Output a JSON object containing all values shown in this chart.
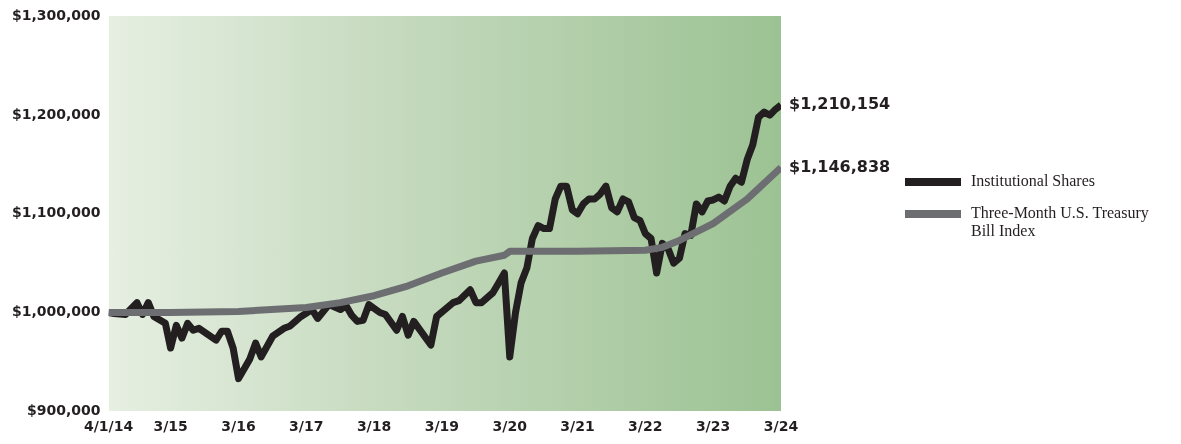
{
  "chart_data": {
    "type": "line",
    "xlim": [
      "2014-04-01",
      "2024-03-01"
    ],
    "xticks": [
      {
        "value": "2014-04-01",
        "label": "4/1/14"
      },
      {
        "value": "2015-03-01",
        "label": "3/15"
      },
      {
        "value": "2016-03-01",
        "label": "3/16"
      },
      {
        "value": "2017-03-01",
        "label": "3/17"
      },
      {
        "value": "2018-03-01",
        "label": "3/18"
      },
      {
        "value": "2019-03-01",
        "label": "3/19"
      },
      {
        "value": "2020-03-01",
        "label": "3/20"
      },
      {
        "value": "2021-03-01",
        "label": "3/21"
      },
      {
        "value": "2022-03-01",
        "label": "3/22"
      },
      {
        "value": "2023-03-01",
        "label": "3/23"
      },
      {
        "value": "2024-03-01",
        "label": "3/24"
      }
    ],
    "ylim": [
      900000,
      1300000
    ],
    "yticks": [
      {
        "value": 900000,
        "label": "$900,000"
      },
      {
        "value": 1000000,
        "label": "$1,000,000"
      },
      {
        "value": 1100000,
        "label": "$1,100,000"
      },
      {
        "value": 1200000,
        "label": "$1,200,000"
      },
      {
        "value": 1300000,
        "label": "$1,300,000"
      }
    ],
    "grid": false,
    "legend": "right",
    "marker": "none",
    "line_style": "solid",
    "series": [
      {
        "name": "Three-Month U.S. Treasury Bill Index",
        "color": "#6d6e71",
        "x": [
          "2014-04",
          "2015-03",
          "2016-03",
          "2017-03",
          "2017-09",
          "2018-03",
          "2018-09",
          "2019-03",
          "2019-09",
          "2020-02",
          "2020-03",
          "2021-03",
          "2022-03",
          "2022-06",
          "2022-09",
          "2023-03",
          "2023-09",
          "2024-03"
        ],
        "values": [
          1000000,
          1000000,
          1001000,
          1005000,
          1010000,
          1017000,
          1027000,
          1040000,
          1052000,
          1058000,
          1062000,
          1062000,
          1063000,
          1066000,
          1073000,
          1090000,
          1115000,
          1146838
        ]
      },
      {
        "name": "Institutional Shares",
        "color": "#231f20",
        "x": [
          "2014-04",
          "2014-05",
          "2014-07",
          "2014-09",
          "2014-10",
          "2014-11",
          "2014-12",
          "2015-02",
          "2015-03",
          "2015-04",
          "2015-05",
          "2015-06",
          "2015-07",
          "2015-08",
          "2015-11",
          "2015-12",
          "2016-01",
          "2016-02",
          "2016-03",
          "2016-05",
          "2016-06",
          "2016-07",
          "2016-09",
          "2016-11",
          "2016-12",
          "2017-02",
          "2017-04",
          "2017-05",
          "2017-07",
          "2017-09",
          "2017-10",
          "2017-11",
          "2017-12",
          "2018-01",
          "2018-02",
          "2018-04",
          "2018-05",
          "2018-07",
          "2018-08",
          "2018-09",
          "2018-10",
          "2019-01",
          "2019-02",
          "2019-05",
          "2019-06",
          "2019-08",
          "2019-09",
          "2019-10",
          "2019-12",
          "2020-01",
          "2020-02",
          "2020-03",
          "2020-04",
          "2020-05",
          "2020-06",
          "2020-07",
          "2020-08",
          "2020-09",
          "2020-10",
          "2020-11",
          "2020-12",
          "2021-01",
          "2021-02",
          "2021-03",
          "2021-04",
          "2021-05",
          "2021-06",
          "2021-07",
          "2021-08",
          "2021-09",
          "2021-10",
          "2021-11",
          "2021-12",
          "2022-01",
          "2022-02",
          "2022-03",
          "2022-04",
          "2022-05",
          "2022-06",
          "2022-07",
          "2022-08",
          "2022-09",
          "2022-10",
          "2022-11",
          "2022-12",
          "2023-01",
          "2023-02",
          "2023-03",
          "2023-04",
          "2023-05",
          "2023-06",
          "2023-07",
          "2023-08",
          "2023-09",
          "2023-10",
          "2023-11",
          "2023-12",
          "2024-01",
          "2024-02",
          "2024-03"
        ],
        "values": [
          1000000,
          999000,
          998000,
          1010000,
          998000,
          1010000,
          996000,
          989000,
          964000,
          987000,
          974000,
          989000,
          982000,
          984000,
          972000,
          981000,
          981000,
          964000,
          933000,
          953000,
          969000,
          955000,
          976000,
          984000,
          986000,
          996000,
          1003000,
          994000,
          1008000,
          1003000,
          1007000,
          997000,
          991000,
          992000,
          1008000,
          1000000,
          998000,
          982000,
          996000,
          977000,
          991000,
          967000,
          996000,
          1010000,
          1012000,
          1023000,
          1010000,
          1010000,
          1020000,
          1030000,
          1040000,
          955000,
          1000000,
          1030000,
          1045000,
          1075000,
          1088000,
          1085000,
          1085000,
          1115000,
          1128000,
          1128000,
          1104000,
          1100000,
          1110000,
          1115000,
          1115000,
          1120000,
          1128000,
          1106000,
          1102000,
          1115000,
          1112000,
          1096000,
          1093000,
          1080000,
          1075000,
          1040000,
          1070000,
          1065000,
          1050000,
          1055000,
          1080000,
          1078000,
          1110000,
          1102000,
          1113000,
          1114000,
          1117000,
          1113000,
          1128000,
          1136000,
          1132000,
          1155000,
          1170000,
          1198000,
          1203000,
          1200000,
          1206000,
          1210154
        ]
      }
    ],
    "annotations": [
      {
        "text": "$1,210,154",
        "x": "2024-03",
        "y": 1210154
      },
      {
        "text": "$1,146,838",
        "x": "2024-03",
        "y": 1146838
      }
    ]
  }
}
